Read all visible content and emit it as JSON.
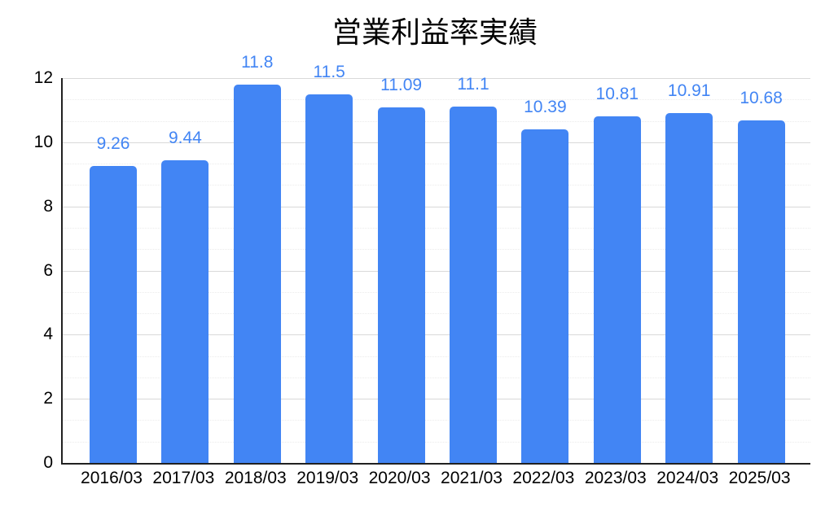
{
  "chart_data": {
    "type": "bar",
    "title": "営業利益率実績",
    "categories": [
      "2016/03",
      "2017/03",
      "2018/03",
      "2019/03",
      "2020/03",
      "2021/03",
      "2022/03",
      "2023/03",
      "2024/03",
      "2025/03"
    ],
    "values": [
      9.26,
      9.44,
      11.8,
      11.5,
      11.09,
      11.1,
      10.39,
      10.81,
      10.91,
      10.68
    ],
    "data_labels": [
      "9.26",
      "9.44",
      "11.8",
      "11.5",
      "11.09",
      "11.1",
      "10.39",
      "10.81",
      "10.91",
      "10.68"
    ],
    "xlabel": "",
    "ylabel": "",
    "ylim": [
      0,
      12
    ],
    "yticks": [
      0,
      2,
      4,
      6,
      8,
      10,
      12
    ],
    "minor_gridlines_per_major_interval": 2,
    "grid": true,
    "legend": "none",
    "colors": {
      "bar": "#4285F4",
      "data_label": "#4285F4",
      "axis_line": "#212121",
      "tick_label": "#000000",
      "title": "#000000",
      "major_gridline": "#d9d9d9",
      "minor_gridline": "#ebebeb",
      "background": "#ffffff"
    }
  }
}
